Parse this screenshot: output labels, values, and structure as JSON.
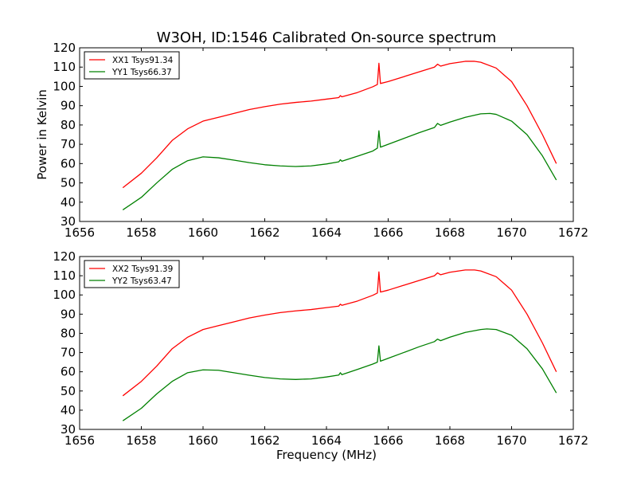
{
  "chart_data": [
    {
      "type": "line",
      "title": "W3OH, ID:1546 Calibrated On-source spectrum",
      "xlabel": "",
      "ylabel": "Power in Kelvin",
      "xlim": [
        1656,
        1672
      ],
      "ylim": [
        30,
        120
      ],
      "xticks": [
        "1656",
        "1658",
        "1660",
        "1662",
        "1664",
        "1666",
        "1668",
        "1670",
        "1672"
      ],
      "yticks": [
        "30",
        "40",
        "50",
        "60",
        "70",
        "80",
        "90",
        "100",
        "110",
        "120"
      ],
      "legend_position": "top-left",
      "series": [
        {
          "name": "XX1 Tsys91.34",
          "color": "#ff0000",
          "x": [
            1657.4,
            1658.0,
            1658.5,
            1659.0,
            1659.5,
            1660.0,
            1660.5,
            1661.0,
            1661.5,
            1662.0,
            1662.5,
            1663.0,
            1663.5,
            1664.0,
            1664.4,
            1664.45,
            1664.5,
            1665.0,
            1665.5,
            1665.65,
            1665.7,
            1665.75,
            1666.0,
            1666.5,
            1667.0,
            1667.5,
            1667.6,
            1667.7,
            1668.0,
            1668.5,
            1668.8,
            1669.0,
            1669.5,
            1670.0,
            1670.5,
            1671.0,
            1671.45
          ],
          "values": [
            47.5,
            55,
            63,
            72,
            78,
            82,
            84,
            86,
            88,
            89.5,
            90.8,
            91.7,
            92.4,
            93.4,
            94.2,
            95.2,
            94.6,
            96.8,
            99.8,
            101,
            112,
            101.5,
            102.5,
            105,
            107.5,
            110,
            111.5,
            110.5,
            111.8,
            113,
            113,
            112.5,
            109.5,
            102.5,
            90,
            75,
            60
          ]
        },
        {
          "name": "YY1 Tsys66.37",
          "color": "#008000",
          "x": [
            1657.4,
            1658.0,
            1658.5,
            1659.0,
            1659.5,
            1660.0,
            1660.5,
            1661.0,
            1661.5,
            1662.0,
            1662.5,
            1663.0,
            1663.5,
            1664.0,
            1664.4,
            1664.45,
            1664.5,
            1665.0,
            1665.5,
            1665.65,
            1665.7,
            1665.75,
            1666.0,
            1666.5,
            1667.0,
            1667.5,
            1667.6,
            1667.7,
            1668.0,
            1668.5,
            1669.0,
            1669.3,
            1669.5,
            1670.0,
            1670.5,
            1671.0,
            1671.45
          ],
          "values": [
            36,
            42.5,
            50,
            57,
            61.5,
            63.5,
            63,
            61.8,
            60.5,
            59.4,
            58.8,
            58.5,
            58.8,
            59.8,
            60.9,
            62,
            61.2,
            63.8,
            66.5,
            68,
            77,
            68.5,
            70,
            73,
            76,
            78.7,
            80.8,
            79.8,
            81.5,
            84,
            85.8,
            86,
            85.5,
            82,
            75,
            64,
            51.5
          ]
        }
      ]
    },
    {
      "type": "line",
      "title": "",
      "xlabel": "Frequency (MHz)",
      "ylabel": "",
      "xlim": [
        1656,
        1672
      ],
      "ylim": [
        30,
        120
      ],
      "xticks": [
        "1656",
        "1658",
        "1660",
        "1662",
        "1664",
        "1666",
        "1668",
        "1670",
        "1672"
      ],
      "yticks": [
        "30",
        "40",
        "50",
        "60",
        "70",
        "80",
        "90",
        "100",
        "110",
        "120"
      ],
      "legend_position": "top-left",
      "series": [
        {
          "name": "XX2 Tsys91.39",
          "color": "#ff0000",
          "x": [
            1657.4,
            1658.0,
            1658.5,
            1659.0,
            1659.5,
            1660.0,
            1660.5,
            1661.0,
            1661.5,
            1662.0,
            1662.5,
            1663.0,
            1663.5,
            1664.0,
            1664.4,
            1664.45,
            1664.5,
            1665.0,
            1665.5,
            1665.65,
            1665.7,
            1665.75,
            1666.0,
            1666.5,
            1667.0,
            1667.5,
            1667.6,
            1667.7,
            1668.0,
            1668.5,
            1668.8,
            1669.0,
            1669.5,
            1670.0,
            1670.5,
            1671.0,
            1671.45
          ],
          "values": [
            47.5,
            55,
            63,
            72,
            78,
            82,
            84,
            86,
            88,
            89.5,
            90.8,
            91.7,
            92.4,
            93.4,
            94.2,
            95.2,
            94.6,
            96.8,
            99.8,
            101,
            112,
            101.5,
            102.5,
            105,
            107.5,
            110,
            111.5,
            110.5,
            111.8,
            113,
            113,
            112.5,
            109.5,
            102.5,
            90,
            75,
            60
          ]
        },
        {
          "name": "YY2 Tsys63.47",
          "color": "#008000",
          "x": [
            1657.4,
            1658.0,
            1658.5,
            1659.0,
            1659.5,
            1660.0,
            1660.5,
            1661.0,
            1661.5,
            1662.0,
            1662.5,
            1663.0,
            1663.5,
            1664.0,
            1664.4,
            1664.45,
            1664.5,
            1665.0,
            1665.5,
            1665.65,
            1665.7,
            1665.75,
            1666.0,
            1666.5,
            1667.0,
            1667.5,
            1667.6,
            1667.7,
            1668.0,
            1668.5,
            1669.0,
            1669.2,
            1669.5,
            1670.0,
            1670.5,
            1671.0,
            1671.45
          ],
          "values": [
            34.5,
            41,
            48.5,
            55,
            59.5,
            61,
            60.8,
            59.5,
            58.2,
            57,
            56.3,
            56,
            56.3,
            57.3,
            58.3,
            59.5,
            58.5,
            61.2,
            64,
            65,
            73.5,
            65.5,
            67,
            70,
            73,
            75.7,
            77,
            76.2,
            78,
            80.5,
            82,
            82.3,
            82,
            79,
            72,
            61.5,
            49
          ]
        }
      ]
    }
  ]
}
